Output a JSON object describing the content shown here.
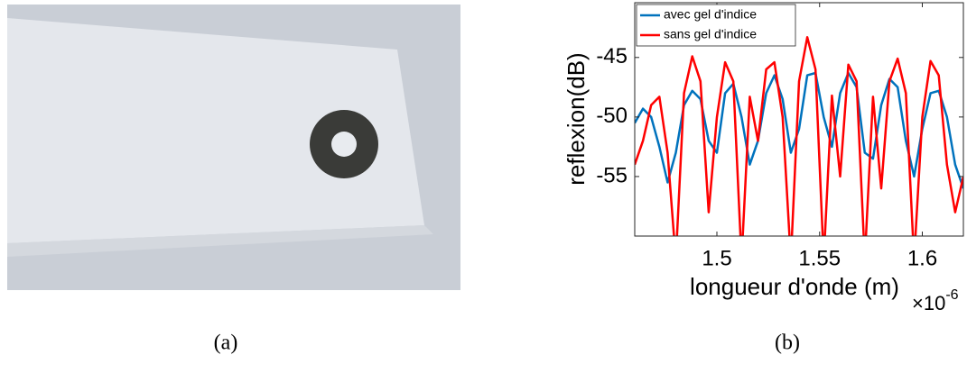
{
  "chart_data": {
    "type": "line",
    "xlabel": "longueur d'onde (m)",
    "ylabel": "reflexion(dB)",
    "x_multiplier": {
      "base": "×10",
      "exponent": "-6"
    },
    "x": [
      1.46,
      1.464,
      1.468,
      1.472,
      1.476,
      1.48,
      1.484,
      1.488,
      1.492,
      1.496,
      1.5,
      1.504,
      1.508,
      1.512,
      1.516,
      1.52,
      1.524,
      1.528,
      1.532,
      1.536,
      1.54,
      1.544,
      1.548,
      1.552,
      1.556,
      1.56,
      1.564,
      1.568,
      1.572,
      1.576,
      1.58,
      1.584,
      1.588,
      1.592,
      1.596,
      1.6,
      1.604,
      1.608,
      1.612,
      1.616,
      1.62
    ],
    "series": [
      {
        "name": "avec gel d'indice",
        "color": "#0072bd",
        "values": [
          -50.5,
          -49.3,
          -50,
          -52.5,
          -55.5,
          -53,
          -49,
          -47.8,
          -48.5,
          -52,
          -53,
          -48,
          -47.2,
          -50,
          -54,
          -52,
          -48,
          -46.5,
          -48.5,
          -53,
          -51,
          -46.5,
          -46.3,
          -50,
          -52.5,
          -48,
          -46.3,
          -47.5,
          -53,
          -53.5,
          -49,
          -46.8,
          -47.5,
          -52,
          -55,
          -51,
          -48,
          -47.8,
          -50,
          -54,
          -56
        ]
      },
      {
        "name": "sans gel d'indice",
        "color": "#ff0000",
        "values": [
          -54,
          -52,
          -49,
          -48.3,
          -53,
          -62,
          -48,
          -44.9,
          -47,
          -58,
          -50,
          -45.4,
          -47,
          -62,
          -48.3,
          -52,
          -46,
          -45.4,
          -50,
          -62,
          -47,
          -43.3,
          -46,
          -62,
          -48.2,
          -55,
          -45.6,
          -47,
          -62,
          -48.3,
          -56,
          -47,
          -45.1,
          -48,
          -62,
          -50,
          -45.3,
          -46.5,
          -54,
          -58,
          -55
        ]
      }
    ],
    "xlim": [
      1.46,
      1.62
    ],
    "ylim": [
      -60,
      -40.4
    ],
    "xticks": [
      1.5,
      1.55,
      1.6
    ],
    "yticks": [
      -55,
      -50,
      -45
    ],
    "grid": false,
    "legend": "upper left"
  },
  "captions": [
    "(a)",
    "(b)"
  ]
}
